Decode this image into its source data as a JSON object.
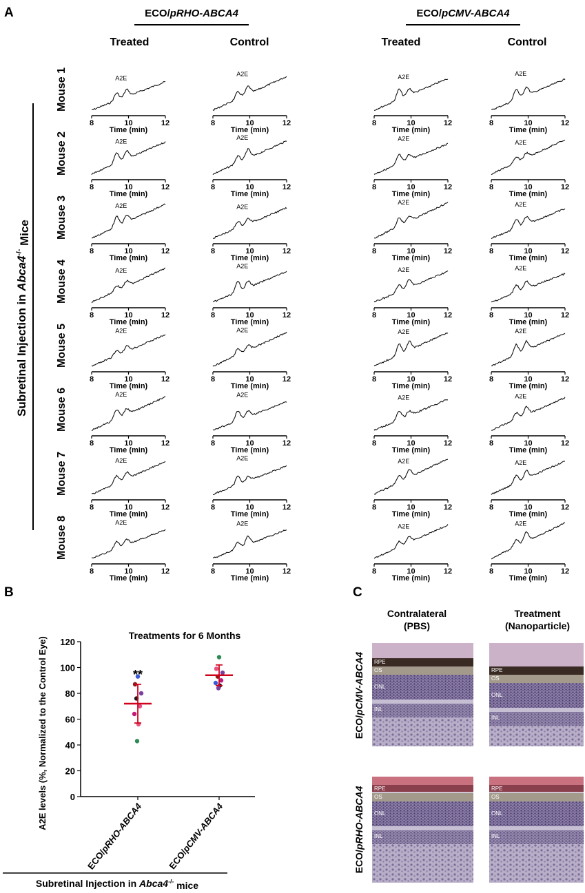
{
  "panel_a": {
    "label": "A",
    "groups": [
      {
        "prefix": "ECO/",
        "italic": "pRHO-ABCA4"
      },
      {
        "prefix": "ECO/",
        "italic": "pCMV-ABCA4"
      }
    ],
    "columns": [
      "Treated",
      "Control"
    ],
    "rows": [
      "Mouse 1",
      "Mouse 2",
      "Mouse 3",
      "Mouse 4",
      "Mouse 5",
      "Mouse 6",
      "Mouse 7",
      "Mouse 8"
    ],
    "side_label": {
      "lead": "Subretinal Injection in ",
      "gene": "Abca4",
      "sup": "-/-",
      "tail": " Mice"
    },
    "peak_label": "A2E",
    "x_ticks": [
      8,
      10,
      12
    ],
    "x_label": "Time (min)"
  },
  "chart_data": {
    "type": "scatter",
    "panel_label": "B",
    "title": "Treatments for 6 Months",
    "y_label": "A2E levels (%, Normalized to the Control Eye)",
    "x_label": {
      "lead": "Subretinal Injection in ",
      "gene": "Abca4",
      "sup": "-/-",
      "tail": " mice"
    },
    "categories": [
      {
        "prefix": "ECO/",
        "italic": "pRHO-ABCA4"
      },
      {
        "prefix": "ECO/",
        "italic": "pCMV-ABCA4"
      }
    ],
    "groups": [
      {
        "values": [
          93,
          87,
          80,
          76,
          70,
          64,
          56,
          43
        ],
        "colors": [
          "#3b5bd6",
          "#8b1a1a",
          "#7b3f9e",
          "#1a1a1a",
          "#e0508a",
          "#c2187a",
          "#e75480",
          "#2e8b57"
        ],
        "mean": 72,
        "sd": 15,
        "annotation": "**"
      },
      {
        "values": [
          108,
          99,
          96,
          93,
          90,
          88,
          86,
          84
        ],
        "colors": [
          "#2e8b57",
          "#e75480",
          "#7b3f9e",
          "#8b1a1a",
          "#c2187a",
          "#3b5bd6",
          "#1a1a1a",
          "#7b3f9e"
        ],
        "mean": 94,
        "sd": 8
      }
    ],
    "mean_color": "#d0021b",
    "ylim": [
      0,
      120
    ],
    "yticks": [
      0,
      20,
      40,
      60,
      80,
      100,
      120
    ]
  },
  "panel_c": {
    "label": "C",
    "columns": [
      [
        "Contralateral",
        "(PBS)"
      ],
      [
        "Treatment",
        "(Nanoparticle)"
      ]
    ],
    "rows": [
      {
        "prefix": "ECO/",
        "italic": "pCMV-ABCA4"
      },
      {
        "prefix": "ECO/",
        "italic": "pRHO-ABCA4"
      }
    ],
    "layers": [
      "RPE",
      "OS",
      "ONL",
      "INL"
    ]
  }
}
